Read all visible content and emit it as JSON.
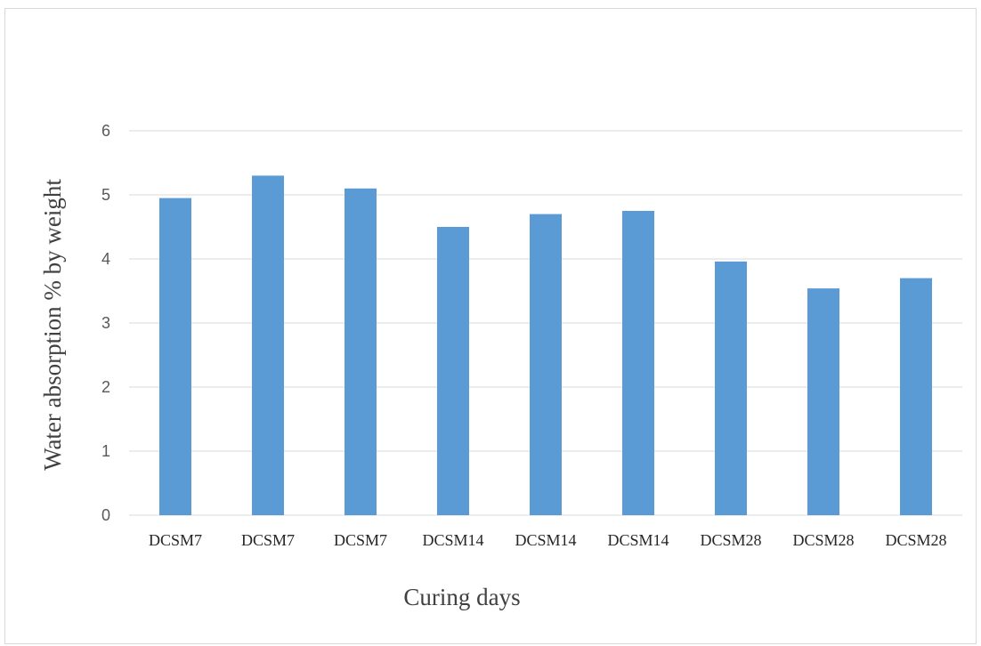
{
  "chart_data": {
    "type": "bar",
    "title": "",
    "xlabel": "Curing days",
    "ylabel": "Water absorption % by weight",
    "categories": [
      "DCSM7",
      "DCSM7",
      "DCSM7",
      "DCSM14",
      "DCSM14",
      "DCSM14",
      "DCSM28",
      "DCSM28",
      "DCSM28"
    ],
    "values": [
      4.95,
      5.3,
      5.1,
      4.5,
      4.7,
      4.75,
      3.96,
      3.54,
      3.7
    ],
    "ylim": [
      0,
      6
    ],
    "yticks": [
      0,
      1,
      2,
      3,
      4,
      5,
      6
    ],
    "grid": true,
    "legend": "none",
    "bar_color": "#5b9bd5",
    "grid_color": "#d9d9d9"
  }
}
